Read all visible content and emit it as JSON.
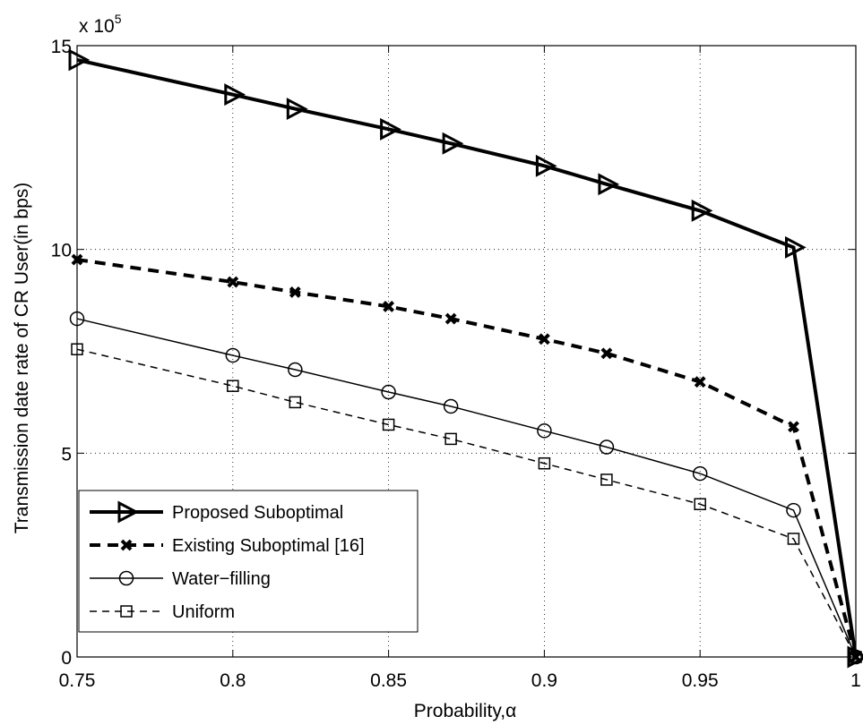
{
  "chart_data": {
    "type": "line",
    "title": "",
    "xlabel": "Probability,α",
    "ylabel": "Transmission date rate of CR User(in bps)",
    "xlim": [
      0.75,
      1
    ],
    "ylim": [
      0,
      1500000
    ],
    "y_multiplier_label": "x 10",
    "y_multiplier_exponent": "5",
    "x_ticks": [
      0.75,
      0.8,
      0.85,
      0.9,
      0.95,
      1
    ],
    "x_tick_labels": [
      "0.75",
      "0.8",
      "0.85",
      "0.9",
      "0.95",
      "1"
    ],
    "y_ticks": [
      0,
      500000,
      1000000,
      1500000
    ],
    "y_tick_labels": [
      "0",
      "5",
      "10",
      "15"
    ],
    "grid": true,
    "legend_position": "bottom-left",
    "x": [
      0.75,
      0.8,
      0.82,
      0.85,
      0.87,
      0.9,
      0.92,
      0.95,
      0.98,
      1.0
    ],
    "series": [
      {
        "name": "Proposed Suboptimal",
        "marker": "triangle-right",
        "line_style": "solid-thick",
        "color": "#000000",
        "values": [
          1465000,
          1380000,
          1345000,
          1295000,
          1260000,
          1205000,
          1160000,
          1095000,
          1005000,
          0
        ]
      },
      {
        "name": "Existing Suboptimal [16]",
        "marker": "x",
        "line_style": "dashed-thick",
        "color": "#000000",
        "values": [
          975000,
          920000,
          895000,
          860000,
          830000,
          780000,
          745000,
          675000,
          565000,
          0
        ]
      },
      {
        "name": "Water−filling",
        "marker": "circle",
        "line_style": "solid-thin",
        "color": "#000000",
        "values": [
          830000,
          740000,
          705000,
          650000,
          615000,
          555000,
          515000,
          450000,
          360000,
          0
        ]
      },
      {
        "name": "Uniform",
        "marker": "square",
        "line_style": "dashed-thin",
        "color": "#000000",
        "values": [
          755000,
          665000,
          625000,
          570000,
          535000,
          475000,
          435000,
          375000,
          290000,
          0
        ]
      }
    ]
  }
}
